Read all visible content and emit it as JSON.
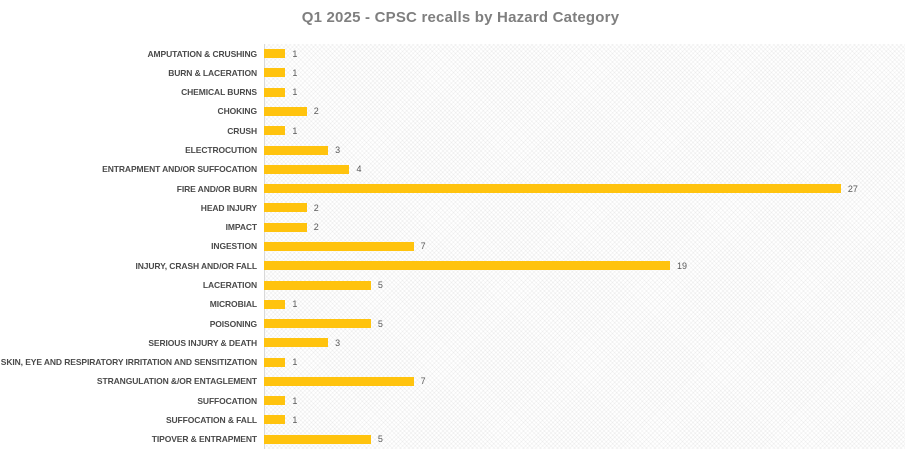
{
  "chart_data": {
    "type": "bar",
    "orientation": "horizontal",
    "title": "Q1 2025 - CPSC recalls by Hazard Category",
    "categories": [
      "AMPUTATION & CRUSHING",
      "BURN & LACERATION",
      "CHEMICAL BURNS",
      "CHOKING",
      "CRUSH",
      "ELECTROCUTION",
      "ENTRAPMENT AND/OR SUFFOCATION",
      "FIRE AND/OR BURN",
      "HEAD INJURY",
      "IMPACT",
      "INGESTION",
      "INJURY, CRASH AND/OR FALL",
      "LACERATION",
      "MICROBIAL",
      "POISONING",
      "SERIOUS INJURY & DEATH",
      "SKIN, EYE AND RESPIRATORY IRRITATION AND SENSITIZATION",
      "STRANGULATION &/OR ENTAGLEMENT",
      "SUFFOCATION",
      "SUFFOCATION & FALL",
      "TIPOVER & ENTRAPMENT"
    ],
    "values": [
      1,
      1,
      1,
      2,
      1,
      3,
      4,
      27,
      2,
      2,
      7,
      19,
      5,
      1,
      5,
      3,
      1,
      7,
      1,
      1,
      5
    ],
    "xlabel": "",
    "ylabel": "",
    "xlim": [
      0,
      30
    ],
    "data_labels": true,
    "grid": false,
    "legend": false,
    "bar_color": "#FFC30E",
    "axis_line_color": "#d9d9d9",
    "title_color": "#7f7f7f",
    "label_color": "#4a4a4a",
    "value_label_color": "#595959"
  }
}
